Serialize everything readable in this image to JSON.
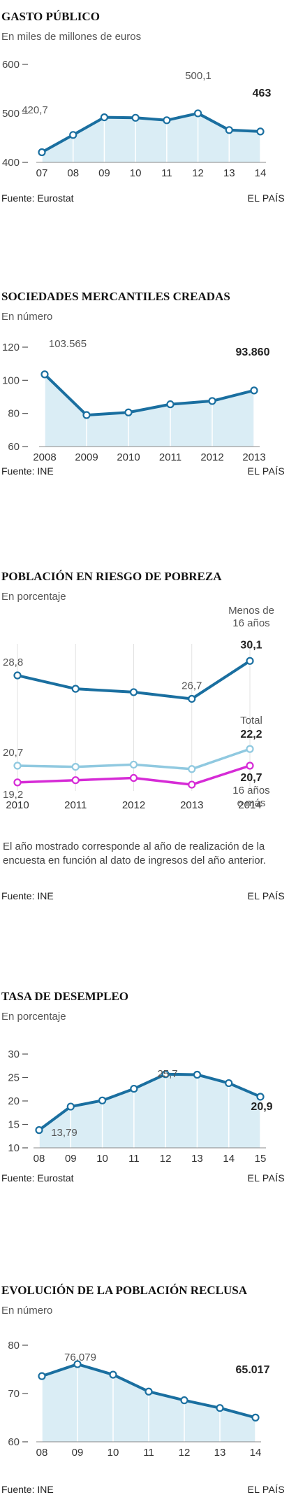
{
  "brand": "EL PAÍS",
  "chart_data": [
    {
      "type": "area",
      "title": "GASTO PÚBLICO",
      "subtitle": "En miles de millones de euros",
      "source": "Fuente: Eurostat",
      "categories": [
        "07",
        "08",
        "09",
        "10",
        "11",
        "12",
        "13",
        "14"
      ],
      "values": [
        420.7,
        456,
        492,
        491,
        486,
        500.1,
        466,
        463
      ],
      "ylim": [
        400,
        600
      ],
      "yticks": [
        "600",
        "500",
        "400"
      ],
      "data_labels": {
        "first": "420,7",
        "peak": "500,1",
        "last": "463"
      },
      "line_color": "#1a6fa0",
      "fill_color": "#daedf5"
    },
    {
      "type": "area",
      "title": "SOCIEDADES MERCANTILES CREADAS",
      "subtitle": "En número",
      "source": "Fuente: INE",
      "categories": [
        "2008",
        "2009",
        "2010",
        "2011",
        "2012",
        "2013"
      ],
      "values": [
        103.565,
        79,
        80.6,
        85.5,
        87.5,
        93.86
      ],
      "ylim": [
        60,
        120
      ],
      "yticks": [
        "120",
        "100",
        "80",
        "60"
      ],
      "data_labels": {
        "first": "103.565",
        "last": "93.860"
      },
      "line_color": "#1a6fa0",
      "fill_color": "#daedf5"
    },
    {
      "type": "line",
      "title": "POBLACIÓN EN RIESGO DE POBREZA",
      "subtitle": "En porcentaje",
      "source": "Fuente: INE",
      "note": "El año mostrado corresponde al año de realización de la encuesta en función al dato de ingresos del año anterior.",
      "categories": [
        "2010",
        "2011",
        "2012",
        "2013",
        "2014"
      ],
      "series": [
        {
          "name": "Menos de 16 años",
          "values": [
            28.8,
            27.6,
            27.3,
            26.7,
            30.1
          ],
          "color": "#1a6fa0",
          "labels": {
            "first": "28,8",
            "prev": "26,7",
            "last": "30,1"
          }
        },
        {
          "name": "Total",
          "values": [
            20.7,
            20.6,
            20.8,
            20.4,
            22.2
          ],
          "color": "#90c9e0",
          "labels": {
            "first": "20,7",
            "last": "22,2"
          }
        },
        {
          "name": "16 años o más",
          "values": [
            19.2,
            19.4,
            19.6,
            19.0,
            20.7
          ],
          "color": "#d62bd6",
          "labels": {
            "first": "19,2",
            "last": "20,7"
          }
        }
      ],
      "legend_labels": {
        "menos_line1": "Menos de",
        "menos_line2": "16 años",
        "total": "Total",
        "mas_line1": "16 años",
        "mas_line2": "o más"
      }
    },
    {
      "type": "area",
      "title": "TASA DE DESEMPLEO",
      "subtitle": "En porcentaje",
      "source": "Fuente: Eurostat",
      "categories": [
        "08",
        "09",
        "10",
        "11",
        "12",
        "13",
        "14",
        "15"
      ],
      "values": [
        13.79,
        18.8,
        20.1,
        22.6,
        25.7,
        25.6,
        23.8,
        20.9
      ],
      "ylim": [
        10,
        30
      ],
      "yticks": [
        "30",
        "25",
        "20",
        "15",
        "10"
      ],
      "data_labels": {
        "first": "13,79",
        "peak": "25,7",
        "last": "20,9"
      },
      "line_color": "#1a6fa0",
      "fill_color": "#daedf5"
    },
    {
      "type": "area",
      "title": "EVOLUCIÓN DE LA POBLACIÓN RECLUSA",
      "subtitle": "En número",
      "source": "Fuente: INE",
      "categories": [
        "08",
        "09",
        "10",
        "11",
        "12",
        "13",
        "14"
      ],
      "values": [
        73.6,
        76.079,
        73.9,
        70.4,
        68.6,
        67.0,
        65.017
      ],
      "ylim": [
        60,
        80
      ],
      "yticks": [
        "80",
        "70",
        "60"
      ],
      "data_labels": {
        "peak": "76.079",
        "last": "65.017"
      },
      "line_color": "#1a6fa0",
      "fill_color": "#daedf5"
    }
  ]
}
